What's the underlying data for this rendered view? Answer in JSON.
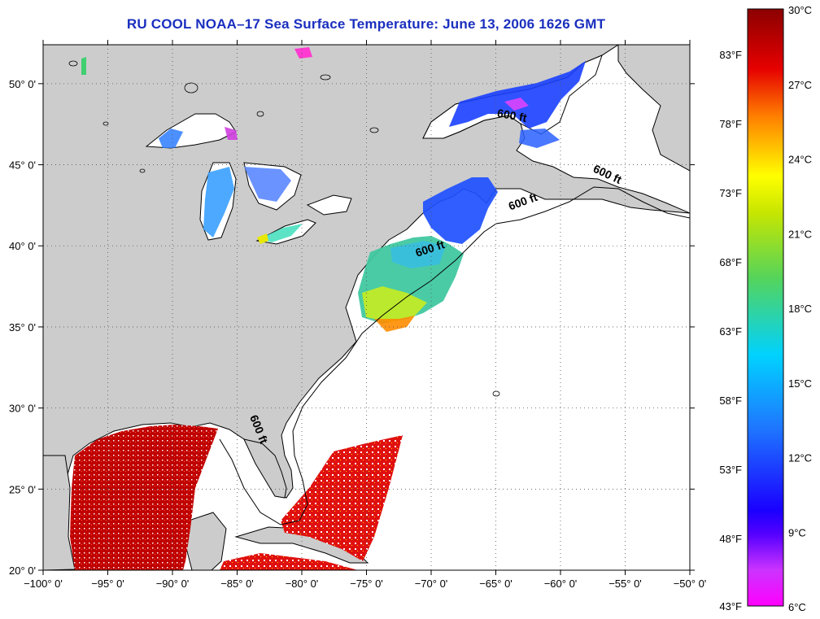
{
  "title": "RU COOL  NOAA–17  Sea Surface Temperature:  June 13, 2006 1626 GMT",
  "map": {
    "lon_range": [
      -100,
      -50
    ],
    "lat_range": [
      20,
      52.4
    ],
    "lon_ticks": [
      {
        "v": -100,
        "label": "−100° 0'"
      },
      {
        "v": -95,
        "label": "−95° 0'"
      },
      {
        "v": -90,
        "label": "−90° 0'"
      },
      {
        "v": -85,
        "label": "−85° 0'"
      },
      {
        "v": -80,
        "label": "−80° 0'"
      },
      {
        "v": -75,
        "label": "−75° 0'"
      },
      {
        "v": -70,
        "label": "−70° 0'"
      },
      {
        "v": -65,
        "label": "−65° 0'"
      },
      {
        "v": -60,
        "label": "−60° 0'"
      },
      {
        "v": -55,
        "label": "−55° 0'"
      },
      {
        "v": -50,
        "label": "−50° 0'"
      }
    ],
    "lat_ticks": [
      {
        "v": 20,
        "label": "20° 0'"
      },
      {
        "v": 25,
        "label": "25° 0'"
      },
      {
        "v": 30,
        "label": "30° 0'"
      },
      {
        "v": 35,
        "label": "35° 0'"
      },
      {
        "v": 40,
        "label": "40° 0'"
      },
      {
        "v": 45,
        "label": "45° 0'"
      },
      {
        "v": 50,
        "label": "50° 0'"
      }
    ],
    "contour_label": "600 ft",
    "contour_labels": [
      {
        "lon": -63.8,
        "lat": 47.8,
        "rot": 10
      },
      {
        "lon": -56.5,
        "lat": 44.2,
        "rot": 25
      },
      {
        "lon": -62.8,
        "lat": 42.5,
        "rot": -20
      },
      {
        "lon": -70.0,
        "lat": 39.6,
        "rot": -18
      },
      {
        "lon": -83.6,
        "lat": 28.6,
        "rot": 68
      }
    ],
    "colors": {
      "land": "#cccccc",
      "ocean": "#ffffff",
      "coast": "#000000",
      "grid": "#555555"
    }
  },
  "colorbar": {
    "celsius": [
      "30°C",
      "27°C",
      "24°C",
      "21°C",
      "18°C",
      "15°C",
      "12°C",
      "9°C",
      "6°C"
    ],
    "fahrenheit": [
      "83°F",
      "78°F",
      "73°F",
      "68°F",
      "63°F",
      "58°F",
      "53°F",
      "48°F",
      "43°F"
    ],
    "range_c": [
      6,
      30
    ],
    "colors": [
      "#8b0000",
      "#e60000",
      "#ff7f00",
      "#ffff00",
      "#55d45a",
      "#00d2ff",
      "#1e78ff",
      "#1a00ff",
      "#8800cc",
      "#ff00ff"
    ]
  }
}
